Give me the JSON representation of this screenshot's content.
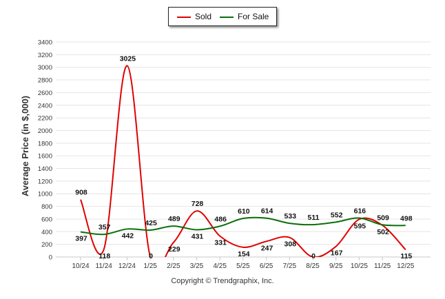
{
  "chart_data": {
    "type": "line",
    "title": "",
    "xlabel": "",
    "ylabel": "Average Price (in $,000)",
    "ylim": [
      0,
      3400
    ],
    "yticks": [
      0,
      200,
      400,
      600,
      800,
      1000,
      1200,
      1400,
      1600,
      1800,
      2000,
      2200,
      2400,
      2600,
      2800,
      3000,
      3200,
      3400
    ],
    "categories": [
      "10/24",
      "11/24",
      "12/24",
      "1/25",
      "2/25",
      "3/25",
      "4/25",
      "5/25",
      "6/25",
      "7/25",
      "8/25",
      "9/25",
      "10/25",
      "11/25",
      "12/25"
    ],
    "series": [
      {
        "name": "Sold",
        "color": "#e00000",
        "values": [
          908,
          118,
          3025,
          0,
          229,
          728,
          331,
          154,
          247,
          308,
          0,
          167,
          595,
          502,
          115
        ]
      },
      {
        "name": "For Sale",
        "color": "#0a6e0a",
        "values": [
          397,
          357,
          442,
          425,
          489,
          431,
          486,
          610,
          614,
          533,
          511,
          552,
          616,
          509,
          498
        ]
      }
    ],
    "legend": {
      "position": "top-center",
      "items": [
        "Sold",
        "For Sale"
      ]
    },
    "grid": true
  },
  "footer": {
    "copyright": "Copyright © Trendgraphix, Inc."
  }
}
